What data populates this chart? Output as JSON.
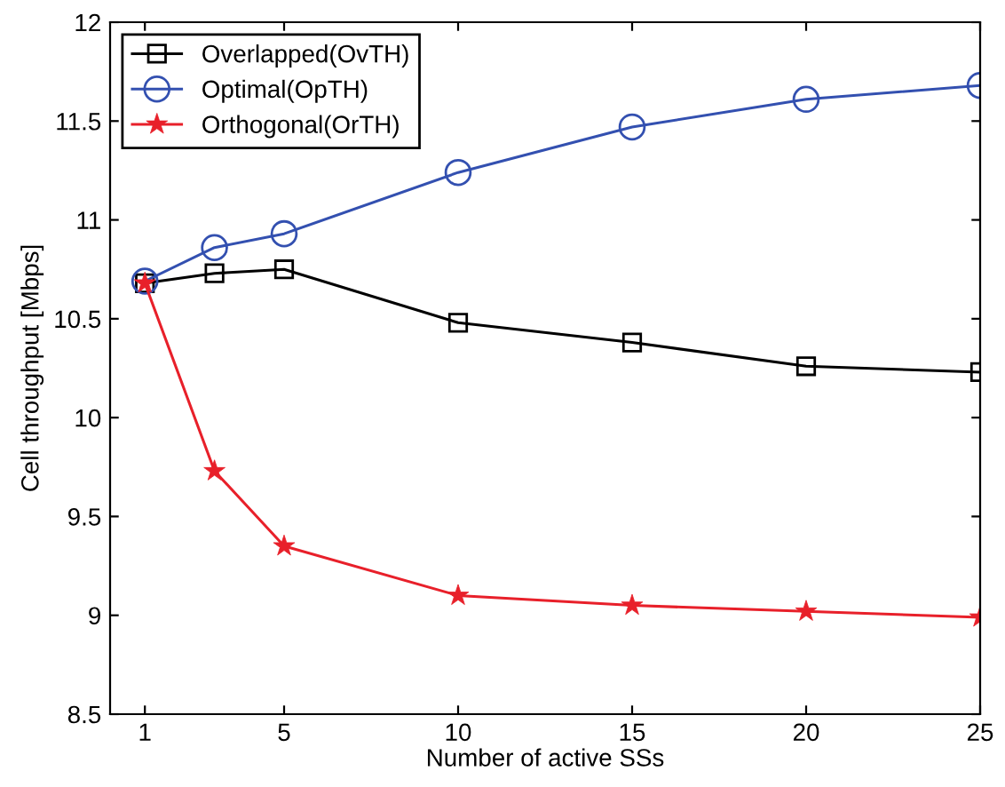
{
  "chart_data": {
    "type": "line",
    "xlabel": "Number of active SSs",
    "ylabel": "Cell throughput [Mbps]",
    "x": [
      1,
      3,
      5,
      10,
      15,
      20,
      25
    ],
    "series": [
      {
        "name": "Overlapped(OvTH)",
        "color": "#000000",
        "marker": "square",
        "values": [
          10.68,
          10.73,
          10.75,
          10.48,
          10.38,
          10.26,
          10.23
        ]
      },
      {
        "name": "Optimal(OpTH)",
        "color": "#3350b0",
        "marker": "circle",
        "values": [
          10.69,
          10.86,
          10.93,
          11.24,
          11.47,
          11.61,
          11.68
        ]
      },
      {
        "name": "Orthogonal(OrTH)",
        "color": "#e8202a",
        "marker": "star",
        "values": [
          10.68,
          9.73,
          9.35,
          9.1,
          9.05,
          9.02,
          8.99
        ]
      }
    ],
    "xlim": [
      0,
      25
    ],
    "xticks": [
      1,
      5,
      10,
      15,
      20,
      25
    ],
    "ylim": [
      8.5,
      12
    ],
    "yticks": [
      8.5,
      9,
      9.5,
      10,
      10.5,
      11,
      11.5,
      12
    ],
    "grid": false,
    "legend": "top left",
    "line_style": "solid"
  }
}
